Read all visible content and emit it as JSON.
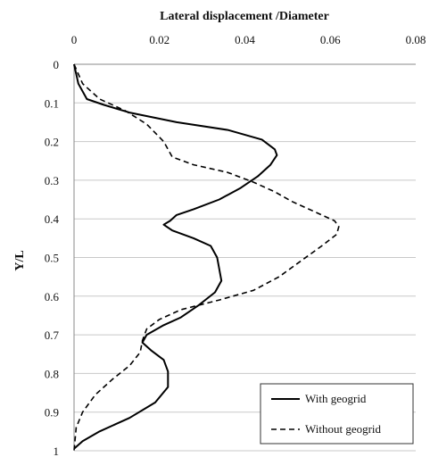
{
  "chart_data": {
    "type": "line",
    "xlabel": "Lateral displacement /Diameter",
    "ylabel": "Y/L",
    "xlim": [
      0,
      0.08
    ],
    "ylim": [
      0,
      1
    ],
    "x_axis_position": "top",
    "y_axis_inverted": true,
    "xticks": [
      "0",
      "0.02",
      "0.04",
      "0.06",
      "0.08"
    ],
    "yticks": [
      "0",
      "0.1",
      "0.2",
      "0.3",
      "0.4",
      "0.5",
      "0.6",
      "0.7",
      "0.8",
      "0.9",
      "1"
    ],
    "grid": "horizontal",
    "legend_position": "bottom-right",
    "series": [
      {
        "name": "With geogrid",
        "style": "solid",
        "points": [
          [
            0.0,
            0.0
          ],
          [
            0.001,
            0.05
          ],
          [
            0.003,
            0.09
          ],
          [
            0.007,
            0.105
          ],
          [
            0.013,
            0.125
          ],
          [
            0.024,
            0.15
          ],
          [
            0.036,
            0.17
          ],
          [
            0.044,
            0.195
          ],
          [
            0.047,
            0.22
          ],
          [
            0.0475,
            0.235
          ],
          [
            0.046,
            0.26
          ],
          [
            0.043,
            0.29
          ],
          [
            0.039,
            0.32
          ],
          [
            0.034,
            0.35
          ],
          [
            0.028,
            0.375
          ],
          [
            0.024,
            0.39
          ],
          [
            0.0225,
            0.405
          ],
          [
            0.021,
            0.415
          ],
          [
            0.023,
            0.43
          ],
          [
            0.028,
            0.45
          ],
          [
            0.032,
            0.47
          ],
          [
            0.0335,
            0.5
          ],
          [
            0.034,
            0.53
          ],
          [
            0.0345,
            0.56
          ],
          [
            0.033,
            0.59
          ],
          [
            0.029,
            0.625
          ],
          [
            0.025,
            0.655
          ],
          [
            0.021,
            0.675
          ],
          [
            0.017,
            0.7
          ],
          [
            0.016,
            0.72
          ],
          [
            0.018,
            0.74
          ],
          [
            0.021,
            0.765
          ],
          [
            0.022,
            0.795
          ],
          [
            0.022,
            0.835
          ],
          [
            0.019,
            0.875
          ],
          [
            0.013,
            0.915
          ],
          [
            0.006,
            0.95
          ],
          [
            0.002,
            0.975
          ],
          [
            0.0,
            0.995
          ]
        ]
      },
      {
        "name": "Without geogrid",
        "style": "dashed",
        "points": [
          [
            0.0,
            0.0
          ],
          [
            0.002,
            0.05
          ],
          [
            0.006,
            0.09
          ],
          [
            0.012,
            0.12
          ],
          [
            0.017,
            0.155
          ],
          [
            0.021,
            0.2
          ],
          [
            0.023,
            0.24
          ],
          [
            0.028,
            0.26
          ],
          [
            0.036,
            0.28
          ],
          [
            0.042,
            0.305
          ],
          [
            0.047,
            0.33
          ],
          [
            0.051,
            0.355
          ],
          [
            0.056,
            0.38
          ],
          [
            0.061,
            0.405
          ],
          [
            0.062,
            0.42
          ],
          [
            0.0615,
            0.44
          ],
          [
            0.058,
            0.47
          ],
          [
            0.053,
            0.51
          ],
          [
            0.048,
            0.55
          ],
          [
            0.042,
            0.585
          ],
          [
            0.034,
            0.61
          ],
          [
            0.025,
            0.635
          ],
          [
            0.02,
            0.66
          ],
          [
            0.017,
            0.685
          ],
          [
            0.016,
            0.715
          ],
          [
            0.0155,
            0.745
          ],
          [
            0.013,
            0.78
          ],
          [
            0.009,
            0.815
          ],
          [
            0.005,
            0.855
          ],
          [
            0.002,
            0.9
          ],
          [
            0.0005,
            0.94
          ],
          [
            0.0,
            1.0
          ]
        ]
      }
    ]
  }
}
